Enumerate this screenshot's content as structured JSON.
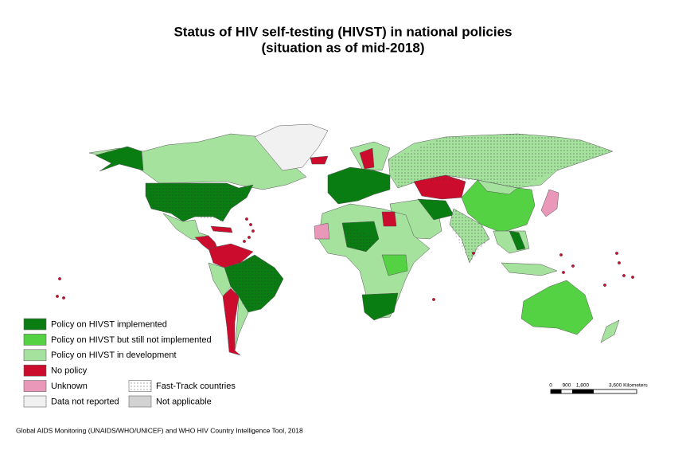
{
  "title": [
    "Status of HIV self-testing (HIVST) in national policies",
    "(situation as of mid-2018)"
  ],
  "legend": [
    {
      "label": "Policy on HIVST implemented",
      "color": "#0a7d12"
    },
    {
      "label": "Policy on HIVST but still not implemented",
      "color": "#55d144"
    },
    {
      "label": "Policy on HIVST in development",
      "color": "#a5e29e"
    },
    {
      "label": "No policy",
      "color": "#cc0c2c"
    },
    {
      "label": "Unknown",
      "color": "#ea98b9"
    },
    {
      "label": "Data not reported",
      "color": "#f1f1f1"
    },
    {
      "label": "Fast-Track countries",
      "color": "#ffffff"
    },
    {
      "label": "Not applicable",
      "color": "#d2d2d2"
    }
  ],
  "scale_bar": [
    "0",
    "900",
    "1,800",
    "3,600 Kilometers"
  ],
  "source": "Global AIDS Monitoring (UNAIDS/WHO/UNICEF) and WHO HIV Country Intelligence Tool, 2018"
}
